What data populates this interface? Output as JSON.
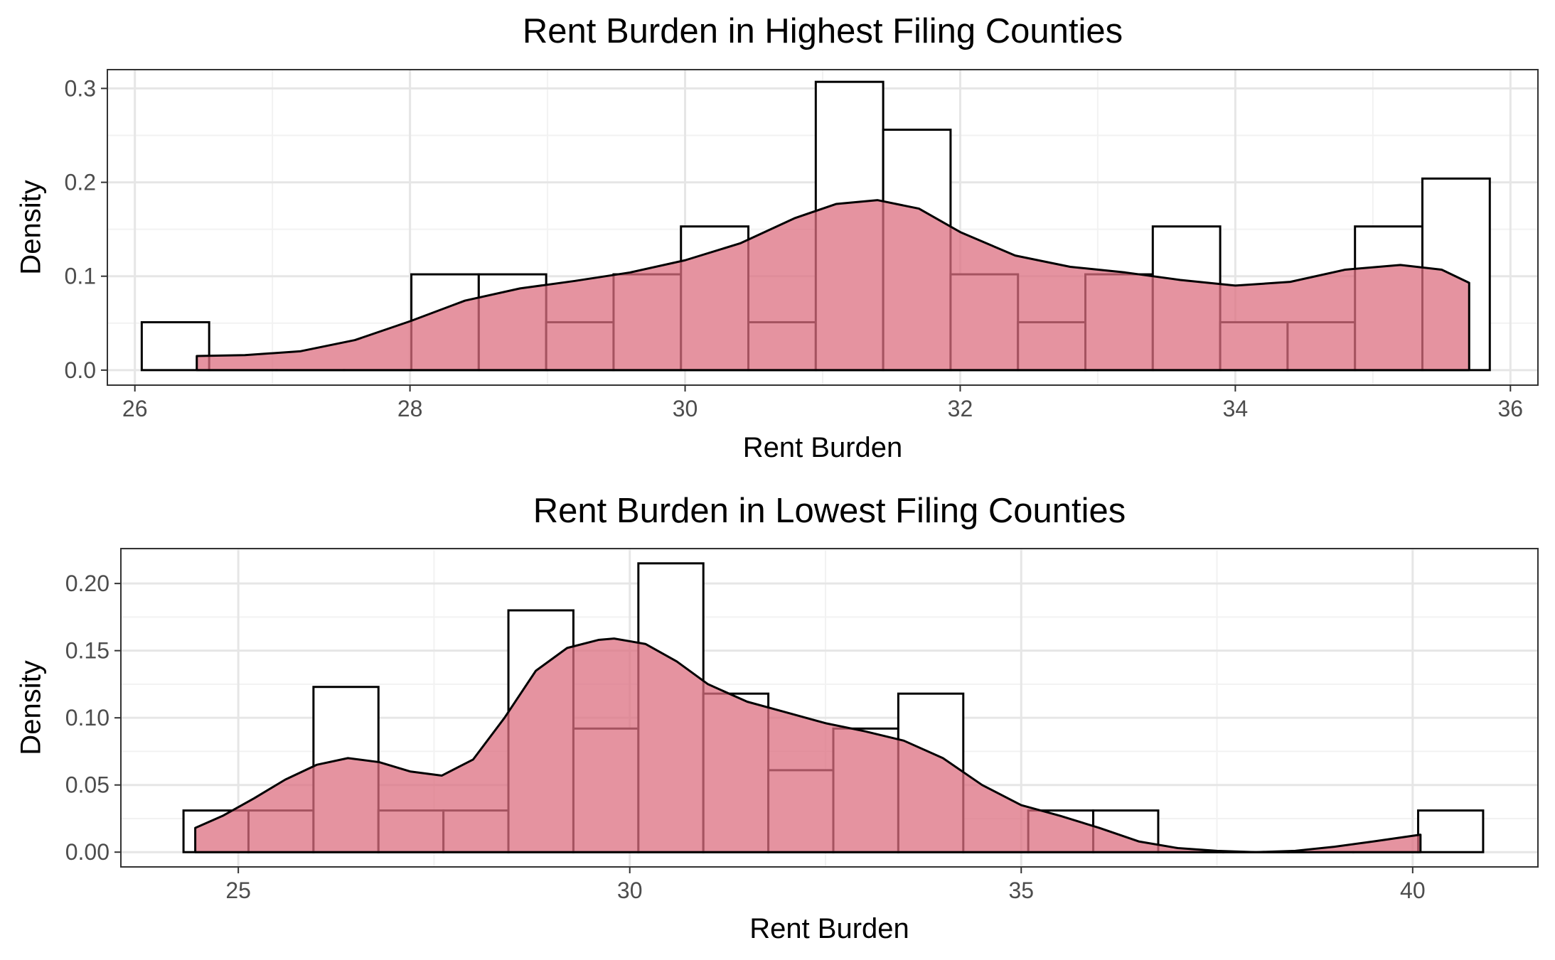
{
  "colors": {
    "density_fill": "#dc6f80",
    "density_fill_opacity": 0.75,
    "outline": "#000000",
    "grid_major": "#e6e6e6",
    "grid_minor": "#f2f2f2",
    "tick_text": "#4d4d4d"
  },
  "chart_data": [
    {
      "type": "histogram-with-density",
      "title": "Rent Burden in Highest Filing Counties",
      "xlabel": "Rent Burden",
      "ylabel": "Density",
      "xlim": [
        25.8,
        36.2
      ],
      "ylim": [
        -0.016,
        0.32
      ],
      "x_ticks": [
        "26",
        "28",
        "30",
        "32",
        "34",
        "36"
      ],
      "y_ticks": [
        "0.0",
        "0.1",
        "0.2",
        "0.3"
      ],
      "grid": true,
      "legend": "none",
      "histogram": {
        "bin_edges": [
          26.05,
          26.54,
          27.03,
          27.52,
          28.01,
          28.5,
          28.99,
          29.48,
          29.97,
          30.46,
          30.95,
          31.44,
          31.93,
          32.42,
          32.91,
          33.4,
          33.89,
          34.38,
          34.87,
          35.36,
          35.85
        ],
        "densities": [
          0.051,
          0,
          0,
          0,
          0.102,
          0.102,
          0.051,
          0.102,
          0.153,
          0.051,
          0.307,
          0.256,
          0.102,
          0.051,
          0.102,
          0.153,
          0.051,
          0.051,
          0.153,
          0.204
        ]
      },
      "density_curve": {
        "x": [
          26.45,
          26.8,
          27.2,
          27.6,
          28.0,
          28.4,
          28.8,
          29.2,
          29.6,
          30.0,
          30.4,
          30.8,
          31.1,
          31.4,
          31.7,
          32.0,
          32.4,
          32.8,
          33.2,
          33.6,
          34.0,
          34.4,
          34.8,
          35.2,
          35.5,
          35.7
        ],
        "y": [
          0.015,
          0.016,
          0.02,
          0.032,
          0.052,
          0.074,
          0.087,
          0.095,
          0.104,
          0.117,
          0.135,
          0.162,
          0.177,
          0.181,
          0.172,
          0.147,
          0.122,
          0.11,
          0.104,
          0.096,
          0.09,
          0.094,
          0.107,
          0.112,
          0.107,
          0.093
        ]
      }
    },
    {
      "type": "histogram-with-density",
      "title": "Rent Burden in Lowest Filing Counties",
      "xlabel": "Rent Burden",
      "ylabel": "Density",
      "xlim": [
        23.5,
        41.6
      ],
      "ylim": [
        -0.011,
        0.226
      ],
      "x_ticks": [
        "25",
        "30",
        "35",
        "40"
      ],
      "y_ticks": [
        "0.00",
        "0.05",
        "0.10",
        "0.15",
        "0.20"
      ],
      "grid": true,
      "legend": "none",
      "histogram": {
        "bin_edges": [
          24.3,
          25.13,
          25.96,
          26.79,
          27.62,
          28.45,
          29.28,
          30.11,
          30.94,
          31.77,
          32.6,
          33.43,
          34.26,
          35.09,
          35.92,
          36.75,
          37.58,
          38.41,
          39.24,
          40.07,
          40.9
        ],
        "densities": [
          0.031,
          0.031,
          0.123,
          0.031,
          0.031,
          0.18,
          0.092,
          0.215,
          0.118,
          0.061,
          0.092,
          0.118,
          0,
          0.031,
          0.031,
          0,
          0,
          0,
          0,
          0.031
        ]
      },
      "density_curve": {
        "x": [
          24.45,
          24.8,
          25.2,
          25.6,
          26.0,
          26.4,
          26.8,
          27.2,
          27.6,
          28.0,
          28.4,
          28.8,
          29.2,
          29.6,
          29.8,
          30.2,
          30.6,
          31.0,
          31.5,
          32.0,
          32.5,
          33.0,
          33.5,
          34.0,
          34.5,
          35.0,
          35.5,
          36.0,
          36.5,
          37.0,
          37.5,
          38.0,
          38.5,
          39.0,
          39.5,
          40.1
        ],
        "y": [
          0.018,
          0.027,
          0.04,
          0.054,
          0.065,
          0.07,
          0.067,
          0.06,
          0.057,
          0.069,
          0.1,
          0.135,
          0.152,
          0.158,
          0.159,
          0.155,
          0.142,
          0.125,
          0.112,
          0.104,
          0.096,
          0.09,
          0.083,
          0.07,
          0.05,
          0.035,
          0.027,
          0.018,
          0.008,
          0.003,
          0.001,
          0,
          0.001,
          0.004,
          0.008,
          0.013
        ]
      }
    }
  ]
}
